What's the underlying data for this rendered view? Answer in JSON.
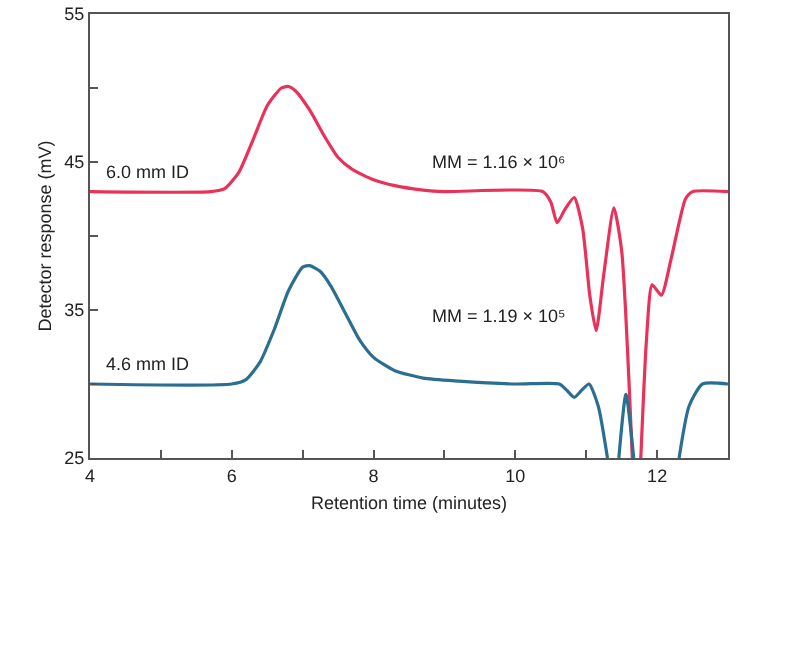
{
  "chart_data": {
    "type": "line",
    "xlabel": "Retention time (minutes)",
    "ylabel": "Detector response (mV)",
    "xlim": [
      4,
      13
    ],
    "ylim": [
      25,
      55
    ],
    "xticks": [
      4,
      {
        "value": 5,
        "label": null
      },
      6,
      {
        "value": 7,
        "label": null
      },
      8,
      {
        "value": 9,
        "label": null
      },
      10,
      {
        "value": 11,
        "label": null
      },
      12,
      {
        "value": 13,
        "label": null
      }
    ],
    "yticks": [
      25,
      {
        "value": 30,
        "label": null
      },
      35,
      {
        "value": 40,
        "label": null
      },
      45,
      {
        "value": 50,
        "label": null
      },
      55
    ],
    "grid": false,
    "legend": false,
    "marker": "none",
    "line_style": "solid",
    "annotations": [
      "MM = 1.16 × 10⁶",
      "MM = 1.19 × 10⁵"
    ],
    "series": [
      {
        "name": "6.0 mm ID",
        "color": "#e8325a",
        "x": [
          4,
          5.7,
          5.9,
          6.1,
          6.3,
          6.5,
          6.7,
          6.8,
          6.9,
          7.1,
          7.3,
          7.5,
          7.7,
          8.0,
          8.3,
          8.7,
          9,
          10.39,
          10.5,
          10.59,
          10.7,
          10.83,
          10.95,
          11.05,
          11.14,
          11.25,
          11.39,
          11.5,
          11.65,
          11.71,
          11.77,
          11.85,
          11.93,
          12.06,
          12.2,
          12.4,
          12.5,
          13
        ],
        "values": [
          43,
          43,
          43.2,
          44.3,
          46.5,
          48.8,
          50,
          50.1,
          49.8,
          48.5,
          46.8,
          45.3,
          44.5,
          43.8,
          43.4,
          43.1,
          43,
          43,
          42.3,
          40.9,
          41.8,
          42.6,
          40.5,
          36,
          33.6,
          37.5,
          41.9,
          39,
          25,
          null,
          25,
          33,
          36.7,
          36,
          38.5,
          42.5,
          43,
          43
        ]
      },
      {
        "name": "4.6 mm ID",
        "color": "#2a6f8f",
        "x": [
          4,
          6.0,
          6.2,
          6.4,
          6.6,
          6.8,
          7.0,
          7.1,
          7.25,
          7.4,
          7.6,
          7.8,
          8.0,
          8.3,
          8.7,
          9.2,
          10,
          10.62,
          10.72,
          10.83,
          10.94,
          11.04,
          11.17,
          11.3,
          11.38,
          11.46,
          11.56,
          11.67,
          12.0,
          12.31,
          12.45,
          12.64,
          13
        ],
        "values": [
          30,
          30,
          30.3,
          31.5,
          33.7,
          36.3,
          37.9,
          38,
          37.6,
          36.6,
          34.8,
          33,
          31.8,
          30.9,
          30.4,
          30.2,
          30,
          30,
          29.6,
          29.1,
          29.6,
          30,
          28.5,
          25,
          null,
          25,
          29.3,
          25,
          null,
          25,
          28.5,
          30,
          30
        ]
      }
    ]
  }
}
